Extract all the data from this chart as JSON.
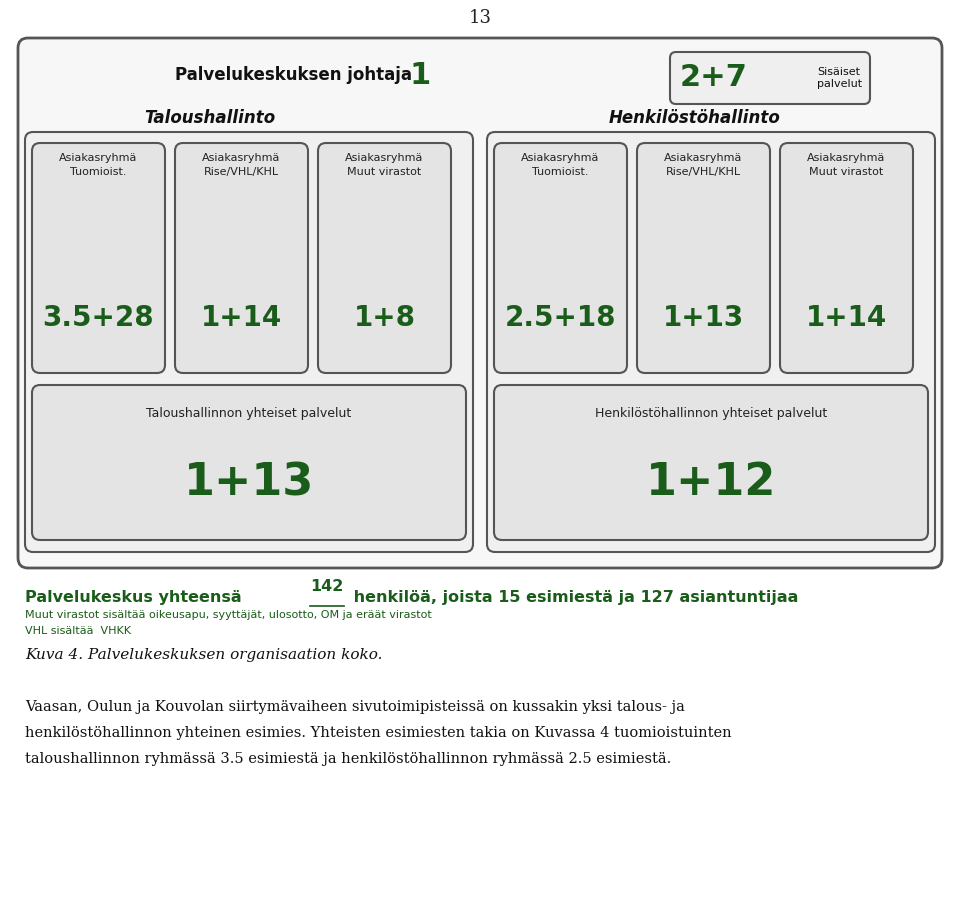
{
  "page_number": "13",
  "bg_color": "#ffffff",
  "dark_green": "#1a5c1a",
  "title_text": "Palvelukeskuksen johtaja",
  "title_number": "1",
  "sisaiset_number": "2+7",
  "sisaiset_label": "Sisäiset\npalvelut",
  "taloushallinto_label": "Taloushallinto",
  "henkilostohallinto_label": "Henkilöstöhallinto",
  "talo_boxes": [
    {
      "title": "Asiakasryhmä\nTuomioist.",
      "value": "3.5+28"
    },
    {
      "title": "Asiakasryhmä\nRise/VHL/KHL",
      "value": "1+14"
    },
    {
      "title": "Asiakasryhmä\nMuut virastot",
      "value": "1+8"
    }
  ],
  "henkilo_boxes": [
    {
      "title": "Asiakasryhmä\nTuomioist.",
      "value": "2.5+18"
    },
    {
      "title": "Asiakasryhmä\nRise/VHL/KHL",
      "value": "1+13"
    },
    {
      "title": "Asiakasryhmä\nMuut virastot",
      "value": "1+14"
    }
  ],
  "talo_shared_title": "Taloushallinnon yhteiset palvelut",
  "talo_shared_value": "1+13",
  "henkilo_shared_title": "Henkilöstöhallinnon yhteiset palvelut",
  "henkilo_shared_value": "1+12",
  "summary_text": "Palvelukeskus yhteensä ",
  "summary_underlined": "142",
  "summary_rest": " henkilöä, joista 15 esimiestä ja 127 asiantuntijaa",
  "footnote1": "Muut virastot sisältää oikeusapu, syyttäjät, ulosotto, OM ja eräät virastot",
  "footnote2": "VHL sisältää  VHKK",
  "caption": "Kuva 4. Palvelukeskuksen organisaation koko.",
  "body_line1": "Vaasan, Oulun ja Kouvolan siirtymävaiheen sivutoimipisteissä on kussakin yksi talous- ja",
  "body_line2": "henkilöstöhallinnon yhteinen esimies. Yhteisten esimiesten takia on Kuvassa 4 tuomioistuinten",
  "body_line3": "taloushallinnon ryhmässä 3.5 esimiestä ja henkilöstöhallinnon ryhmässä 2.5 esimiestä."
}
